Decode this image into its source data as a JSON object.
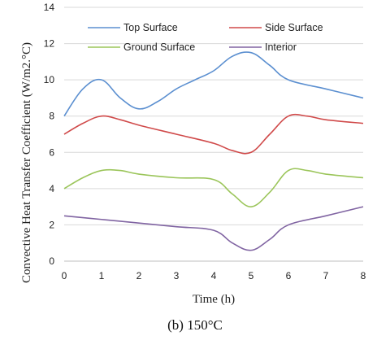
{
  "caption": "(b) 150°C",
  "chart_data": {
    "type": "line",
    "xlabel": "Time (h)",
    "ylabel": "Convective Heat Transfer Coefficient (W/m2.°C)",
    "xlim": [
      0,
      8
    ],
    "ylim": [
      0,
      14
    ],
    "x_ticks": [
      0,
      1,
      2,
      3,
      4,
      5,
      6,
      7,
      8
    ],
    "y_ticks": [
      0,
      2,
      4,
      6,
      8,
      10,
      12,
      14
    ],
    "grid": "horizontal",
    "legend_placement": "top",
    "series": [
      {
        "name": "Top Surface",
        "color": "#5b8fd0",
        "x": [
          0,
          0.5,
          1,
          1.5,
          2,
          2.5,
          3,
          3.5,
          4,
          4.5,
          5,
          5.5,
          6,
          7,
          8
        ],
        "values": [
          8.0,
          9.5,
          10.0,
          9.0,
          8.4,
          8.8,
          9.5,
          10.0,
          10.5,
          11.3,
          11.5,
          10.8,
          10.0,
          9.5,
          9.0
        ]
      },
      {
        "name": "Side Surface",
        "color": "#d04a4a",
        "x": [
          0,
          0.5,
          1,
          1.5,
          2,
          3,
          4,
          4.5,
          5,
          5.5,
          6,
          6.5,
          7,
          8
        ],
        "values": [
          7.0,
          7.6,
          8.0,
          7.8,
          7.5,
          7.0,
          6.5,
          6.1,
          6.0,
          7.0,
          8.0,
          8.0,
          7.8,
          7.6
        ]
      },
      {
        "name": "Ground Surface",
        "color": "#9bc55a",
        "x": [
          0,
          0.5,
          1,
          1.5,
          2,
          3,
          4,
          4.5,
          5,
          5.5,
          6,
          6.5,
          7,
          8
        ],
        "values": [
          4.0,
          4.6,
          5.0,
          5.0,
          4.8,
          4.6,
          4.5,
          3.7,
          3.0,
          3.8,
          5.0,
          5.0,
          4.8,
          4.6
        ]
      },
      {
        "name": "Interior",
        "color": "#8064a2",
        "x": [
          0,
          1,
          2,
          3,
          4,
          4.5,
          5,
          5.5,
          6,
          7,
          8
        ],
        "values": [
          2.5,
          2.3,
          2.1,
          1.9,
          1.7,
          1.0,
          0.6,
          1.2,
          2.0,
          2.5,
          3.0
        ]
      }
    ]
  }
}
